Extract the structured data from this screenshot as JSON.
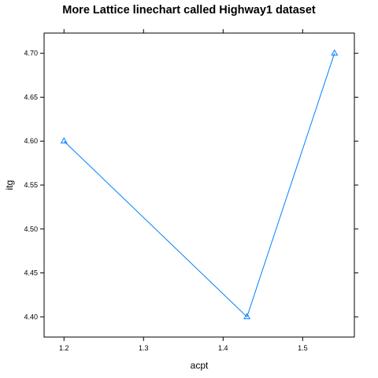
{
  "chart_data": {
    "type": "line",
    "title": "More Lattice linechart called Highway1 dataset",
    "xlabel": "acpt",
    "ylabel": "itg",
    "x": [
      1.2,
      1.43,
      1.54
    ],
    "series": [
      {
        "values": [
          4.6,
          4.4,
          4.7
        ]
      }
    ],
    "xlim": [
      1.175,
      1.565
    ],
    "ylim": [
      4.377,
      4.723
    ],
    "x_ticks": [
      1.2,
      1.3,
      1.4,
      1.5
    ],
    "x_tick_labels": [
      "1.2",
      "1.3",
      "1.4",
      "1.5"
    ],
    "y_ticks": [
      4.4,
      4.45,
      4.5,
      4.55,
      4.6,
      4.65,
      4.7
    ],
    "y_tick_labels": [
      "4.40",
      "4.45",
      "4.50",
      "4.55",
      "4.60",
      "4.65",
      "4.70"
    ],
    "marker": "triangle",
    "grid": false,
    "colors": {
      "series": "#0080ff",
      "frame": "#000000"
    }
  }
}
